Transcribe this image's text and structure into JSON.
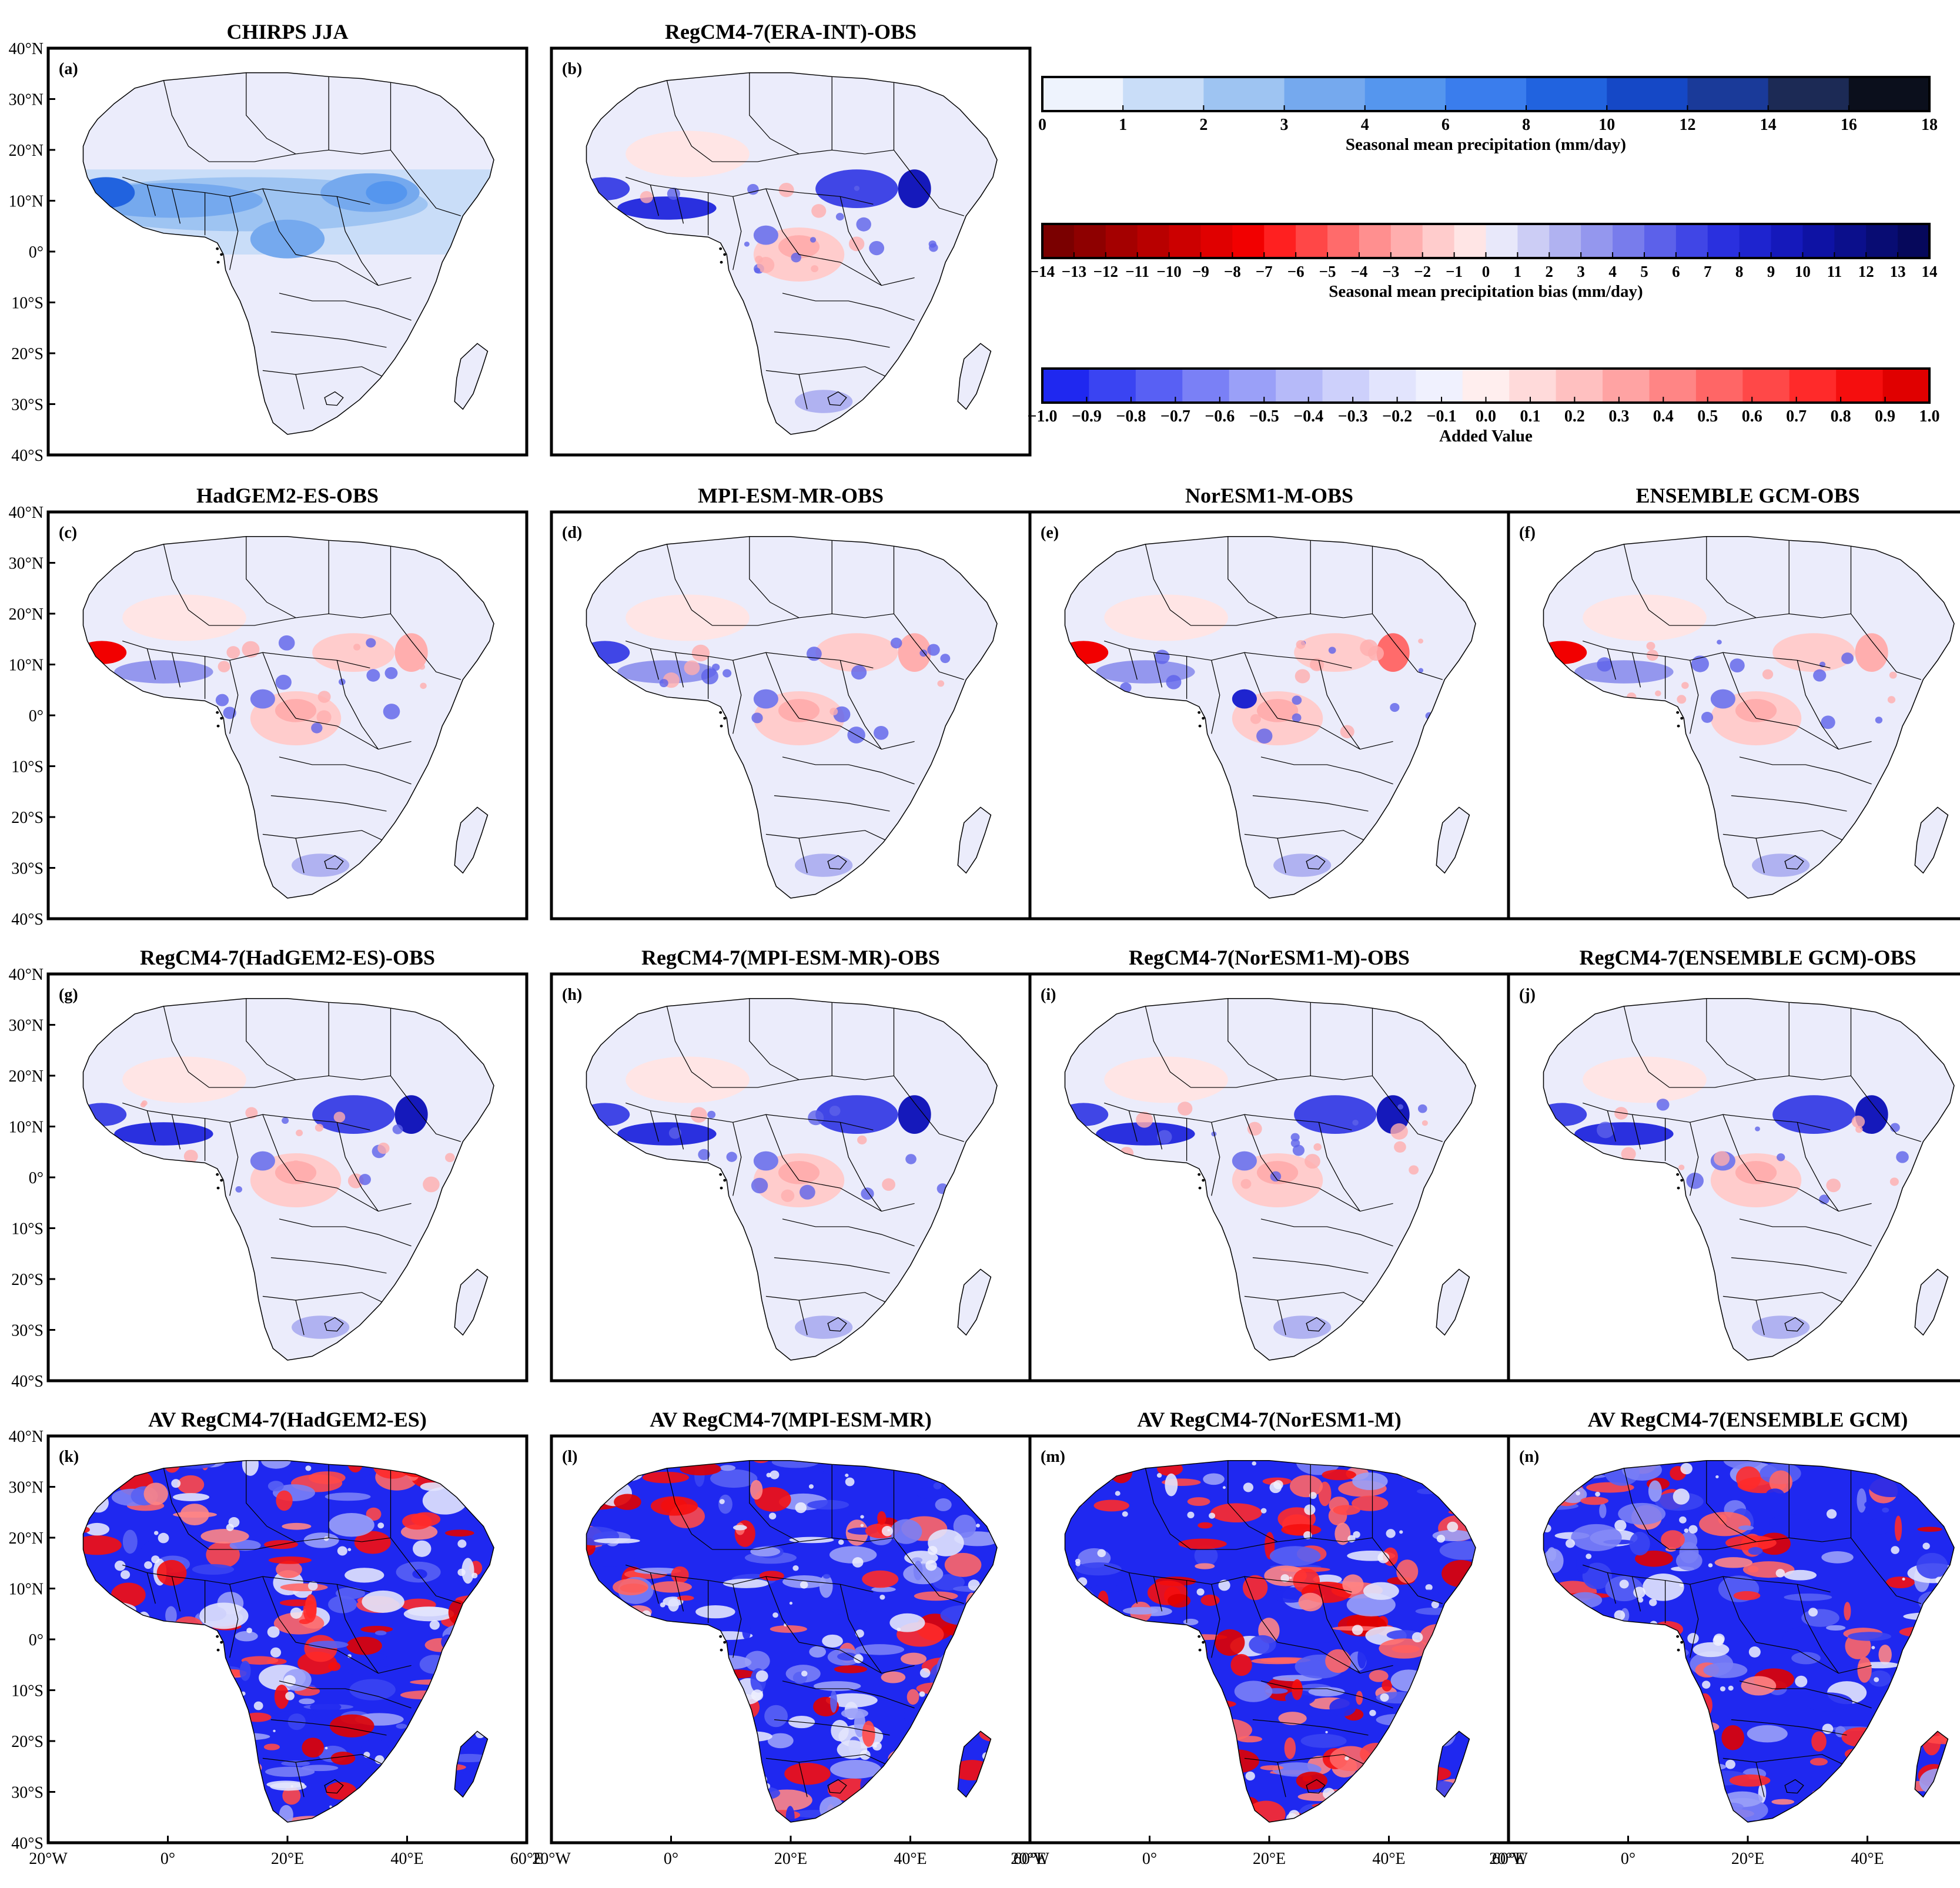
{
  "colors": {
    "precip": [
      "#eef3fd",
      "#c9ddf8",
      "#9ec4f2",
      "#75a9ee",
      "#5596ee",
      "#3a7ded",
      "#2163df",
      "#1548c6",
      "#1a3a99",
      "#1c2a55",
      "#0b0f1c"
    ],
    "bias_neg": [
      "#7a0000",
      "#8e0000",
      "#a40000",
      "#b80000",
      "#cc0000",
      "#e00000",
      "#f20000",
      "#ff2020",
      "#ff4747",
      "#ff6b6b",
      "#ff8f8f",
      "#ffaeae",
      "#ffcccc",
      "#ffe5e5"
    ],
    "bias_pos": [
      "#e8e8fa",
      "#cccdf5",
      "#b0b2f1",
      "#9497ee",
      "#787cec",
      "#5c61ea",
      "#4046e6",
      "#2a30df",
      "#1e24cf",
      "#1519bb",
      "#0e12a4",
      "#0b0f8c",
      "#080c73",
      "#06085b"
    ],
    "av": [
      "#1f28f0",
      "#3a44f2",
      "#5860f4",
      "#7a80f6",
      "#9aa0f8",
      "#b6baf9",
      "#cdd0fb",
      "#e2e4fd",
      "#f0f1fe",
      "#ffeeee",
      "#ffdada",
      "#ffc0c0",
      "#ffa3a3",
      "#ff8585",
      "#ff6666",
      "#ff4848",
      "#ff2a2a",
      "#f50e0e",
      "#e00000"
    ],
    "land_fill": "#ebecfb",
    "border": "#000000"
  },
  "colorbars": [
    {
      "label": "Seasonal mean precipitation (mm/day)",
      "ticks": [
        "0",
        "1",
        "2",
        "3",
        "4",
        "6",
        "8",
        "10",
        "12",
        "14",
        "16",
        "18"
      ]
    },
    {
      "label": "Seasonal mean precipitation bias (mm/day)",
      "ticks": [
        "−14",
        "−13",
        "−12",
        "−11",
        "−10",
        "−9",
        "−8",
        "−7",
        "−6",
        "−5",
        "−4",
        "−3",
        "−2",
        "−1",
        "0",
        "1",
        "2",
        "3",
        "4",
        "5",
        "6",
        "7",
        "8",
        "9",
        "10",
        "11",
        "12",
        "13",
        "14"
      ]
    },
    {
      "label": "Added Value",
      "ticks": [
        "−1.0",
        "−0.9",
        "−0.8",
        "−0.7",
        "−0.6",
        "−0.5",
        "−0.4",
        "−0.3",
        "−0.2",
        "−0.1",
        "0.0",
        "0.1",
        "0.2",
        "0.3",
        "0.4",
        "0.5",
        "0.6",
        "0.7",
        "0.8",
        "0.9",
        "1.0"
      ]
    }
  ],
  "axes": {
    "lat_ticks": [
      "40°N",
      "30°N",
      "20°N",
      "10°N",
      "0°",
      "10°S",
      "20°S",
      "30°S",
      "40°S"
    ],
    "lon_ticks": [
      "20°W",
      "0°",
      "20°E",
      "40°E",
      "60°E"
    ]
  },
  "panels": [
    {
      "id": "a",
      "letter": "(a)",
      "title": "CHIRPS  JJA",
      "kind": "precip"
    },
    {
      "id": "b",
      "letter": "(b)",
      "title": "RegCM4-7(ERA-INT)-OBS",
      "kind": "bias"
    },
    {
      "id": "c",
      "letter": "(c)",
      "title": "HadGEM2-ES-OBS",
      "kind": "bias"
    },
    {
      "id": "d",
      "letter": "(d)",
      "title": "MPI-ESM-MR-OBS",
      "kind": "bias"
    },
    {
      "id": "e",
      "letter": "(e)",
      "title": "NorESM1-M-OBS",
      "kind": "bias"
    },
    {
      "id": "f",
      "letter": "(f)",
      "title": "ENSEMBLE  GCM-OBS",
      "kind": "bias"
    },
    {
      "id": "g",
      "letter": "(g)",
      "title": "RegCM4-7(HadGEM2-ES)-OBS",
      "kind": "bias"
    },
    {
      "id": "h",
      "letter": "(h)",
      "title": "RegCM4-7(MPI-ESM-MR)-OBS",
      "kind": "bias"
    },
    {
      "id": "i",
      "letter": "(i)",
      "title": "RegCM4-7(NorESM1-M)-OBS",
      "kind": "bias"
    },
    {
      "id": "j",
      "letter": "(j)",
      "title": "RegCM4-7(ENSEMBLE  GCM)-OBS",
      "kind": "bias"
    },
    {
      "id": "k",
      "letter": "(k)",
      "title": "AV  RegCM4-7(HadGEM2-ES)",
      "kind": "av"
    },
    {
      "id": "l",
      "letter": "(l)",
      "title": "AV  RegCM4-7(MPI-ESM-MR)",
      "kind": "av"
    },
    {
      "id": "m",
      "letter": "(m)",
      "title": "AV  RegCM4-7(NorESM1-M)",
      "kind": "av"
    },
    {
      "id": "n",
      "letter": "(n)",
      "title": "AV  RegCM4-7(ENSEMBLE  GCM)",
      "kind": "av"
    }
  ]
}
